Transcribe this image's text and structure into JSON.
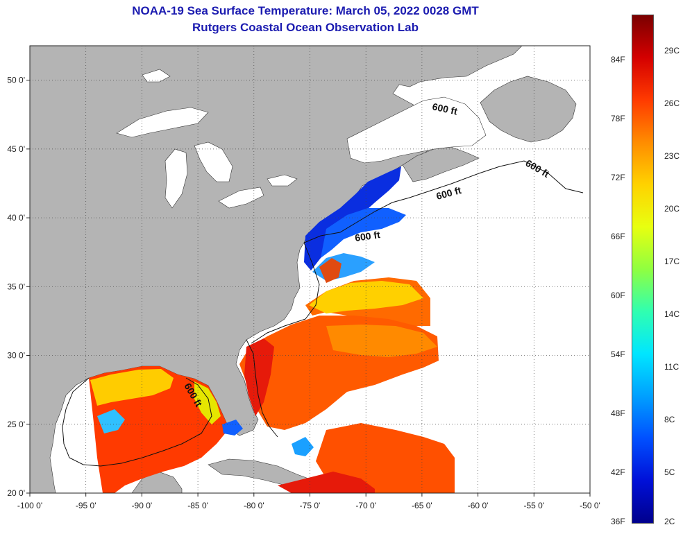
{
  "title": {
    "line1": "NOAA-19 Sea Surface Temperature:  March 05, 2022 0028 GMT",
    "line2": "Rutgers Coastal Ocean Observation Lab"
  },
  "map": {
    "x_ticks": [
      "-100 0'",
      "-95 0'",
      "-90 0'",
      "-85 0'",
      "-80 0'",
      "-75 0'",
      "-70 0'",
      "-65 0'",
      "-60 0'",
      "-55 0'",
      "-50 0'"
    ],
    "y_ticks": [
      "50 0'",
      "45 0'",
      "40 0'",
      "35 0'",
      "30 0'",
      "25 0'",
      "20 0'"
    ],
    "lon_range": [
      -100,
      -50
    ],
    "lat_range": [
      20,
      52.5
    ],
    "contour_labels": [
      "600 ft",
      "600 ft",
      "600 ft",
      "600 ft",
      "600 ft"
    ],
    "land_color": "#b4b4b4",
    "background_color": "#ffffff"
  },
  "colorbar": {
    "fahrenheit_labels": [
      "84F",
      "78F",
      "72F",
      "66F",
      "60F",
      "54F",
      "48F",
      "42F",
      "36F"
    ],
    "celsius_labels": [
      "29C",
      "26C",
      "23C",
      "20C",
      "17C",
      "14C",
      "11C",
      "8C",
      "5C",
      "2C"
    ],
    "colors": [
      "#7a0000",
      "#d40000",
      "#ff3a00",
      "#ff8c00",
      "#ffd200",
      "#e8ff10",
      "#90ff40",
      "#30ffb0",
      "#00e6ff",
      "#00a0ff",
      "#0050ff",
      "#0010d8",
      "#00008c"
    ]
  }
}
